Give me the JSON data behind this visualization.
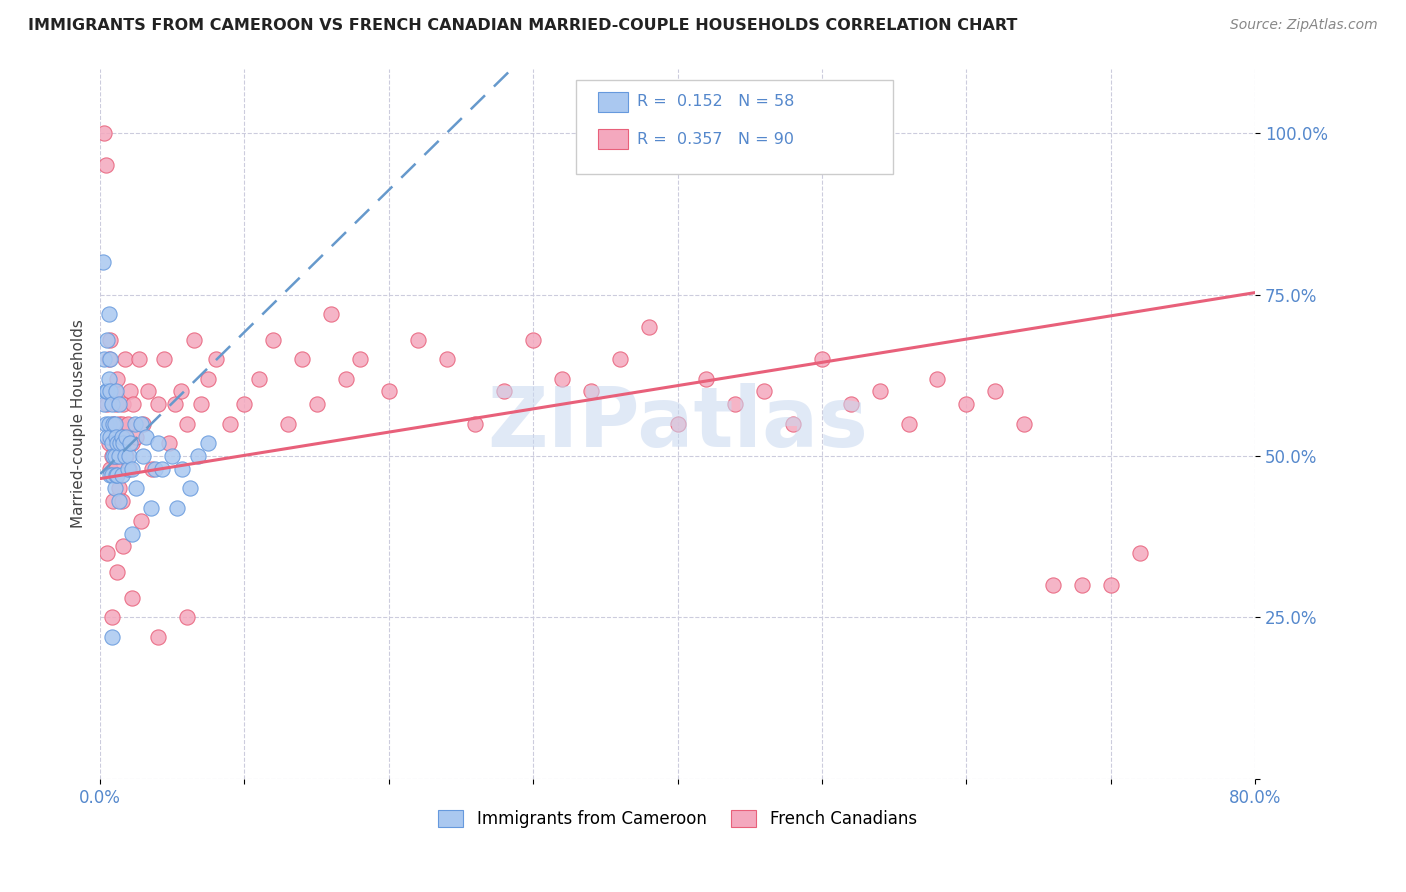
{
  "title": "IMMIGRANTS FROM CAMEROON VS FRENCH CANADIAN MARRIED-COUPLE HOUSEHOLDS CORRELATION CHART",
  "source": "Source: ZipAtlas.com",
  "ylabel": "Married-couple Households",
  "xlim": [
    0.0,
    0.8
  ],
  "ylim": [
    0.0,
    1.1
  ],
  "blue_color": "#aac8f0",
  "pink_color": "#f4a8be",
  "blue_edge_color": "#6699dd",
  "pink_edge_color": "#e8607a",
  "blue_line_color": "#6699cc",
  "pink_line_color": "#e8607a",
  "text_color": "#5588cc",
  "grid_color": "#ccccdd",
  "background_color": "#ffffff",
  "watermark": "ZIPatlas",
  "blue_x": [
    0.002,
    0.003,
    0.003,
    0.004,
    0.004,
    0.005,
    0.005,
    0.005,
    0.006,
    0.006,
    0.006,
    0.007,
    0.007,
    0.007,
    0.007,
    0.008,
    0.008,
    0.008,
    0.009,
    0.009,
    0.01,
    0.01,
    0.01,
    0.011,
    0.011,
    0.011,
    0.012,
    0.012,
    0.013,
    0.013,
    0.013,
    0.014,
    0.015,
    0.015,
    0.016,
    0.017,
    0.018,
    0.019,
    0.02,
    0.021,
    0.022,
    0.024,
    0.025,
    0.028,
    0.03,
    0.032,
    0.035,
    0.038,
    0.04,
    0.043,
    0.05,
    0.053,
    0.057,
    0.062,
    0.068,
    0.075,
    0.008,
    0.022
  ],
  "blue_y": [
    0.8,
    0.65,
    0.58,
    0.6,
    0.55,
    0.68,
    0.6,
    0.53,
    0.72,
    0.62,
    0.55,
    0.65,
    0.6,
    0.53,
    0.47,
    0.58,
    0.52,
    0.47,
    0.55,
    0.5,
    0.55,
    0.5,
    0.45,
    0.6,
    0.53,
    0.47,
    0.52,
    0.47,
    0.58,
    0.5,
    0.43,
    0.52,
    0.53,
    0.47,
    0.52,
    0.5,
    0.53,
    0.48,
    0.5,
    0.52,
    0.48,
    0.55,
    0.45,
    0.55,
    0.5,
    0.53,
    0.42,
    0.48,
    0.52,
    0.48,
    0.5,
    0.42,
    0.48,
    0.45,
    0.5,
    0.52,
    0.22,
    0.38
  ],
  "pink_x": [
    0.003,
    0.004,
    0.005,
    0.006,
    0.006,
    0.007,
    0.007,
    0.008,
    0.008,
    0.009,
    0.009,
    0.01,
    0.01,
    0.011,
    0.011,
    0.012,
    0.012,
    0.013,
    0.013,
    0.014,
    0.015,
    0.015,
    0.016,
    0.017,
    0.018,
    0.019,
    0.02,
    0.021,
    0.022,
    0.023,
    0.025,
    0.027,
    0.03,
    0.033,
    0.036,
    0.04,
    0.044,
    0.048,
    0.052,
    0.056,
    0.06,
    0.065,
    0.07,
    0.075,
    0.08,
    0.09,
    0.1,
    0.11,
    0.12,
    0.13,
    0.14,
    0.15,
    0.16,
    0.17,
    0.18,
    0.2,
    0.22,
    0.24,
    0.26,
    0.28,
    0.3,
    0.32,
    0.34,
    0.36,
    0.38,
    0.4,
    0.42,
    0.44,
    0.46,
    0.48,
    0.5,
    0.52,
    0.54,
    0.56,
    0.58,
    0.6,
    0.62,
    0.64,
    0.66,
    0.68,
    0.7,
    0.72,
    0.005,
    0.008,
    0.012,
    0.016,
    0.022,
    0.028,
    0.04,
    0.06
  ],
  "pink_y": [
    1.0,
    0.95,
    0.58,
    0.65,
    0.52,
    0.68,
    0.48,
    0.6,
    0.5,
    0.55,
    0.43,
    0.6,
    0.47,
    0.58,
    0.48,
    0.62,
    0.5,
    0.55,
    0.45,
    0.53,
    0.55,
    0.43,
    0.58,
    0.65,
    0.5,
    0.55,
    0.48,
    0.6,
    0.52,
    0.58,
    0.53,
    0.65,
    0.55,
    0.6,
    0.48,
    0.58,
    0.65,
    0.52,
    0.58,
    0.6,
    0.55,
    0.68,
    0.58,
    0.62,
    0.65,
    0.55,
    0.58,
    0.62,
    0.68,
    0.55,
    0.65,
    0.58,
    0.72,
    0.62,
    0.65,
    0.6,
    0.68,
    0.65,
    0.55,
    0.6,
    0.68,
    0.62,
    0.6,
    0.65,
    0.7,
    0.55,
    0.62,
    0.58,
    0.6,
    0.55,
    0.65,
    0.58,
    0.6,
    0.55,
    0.62,
    0.58,
    0.6,
    0.55,
    0.3,
    0.3,
    0.3,
    0.35,
    0.35,
    0.25,
    0.32,
    0.36,
    0.28,
    0.4,
    0.22,
    0.25
  ]
}
